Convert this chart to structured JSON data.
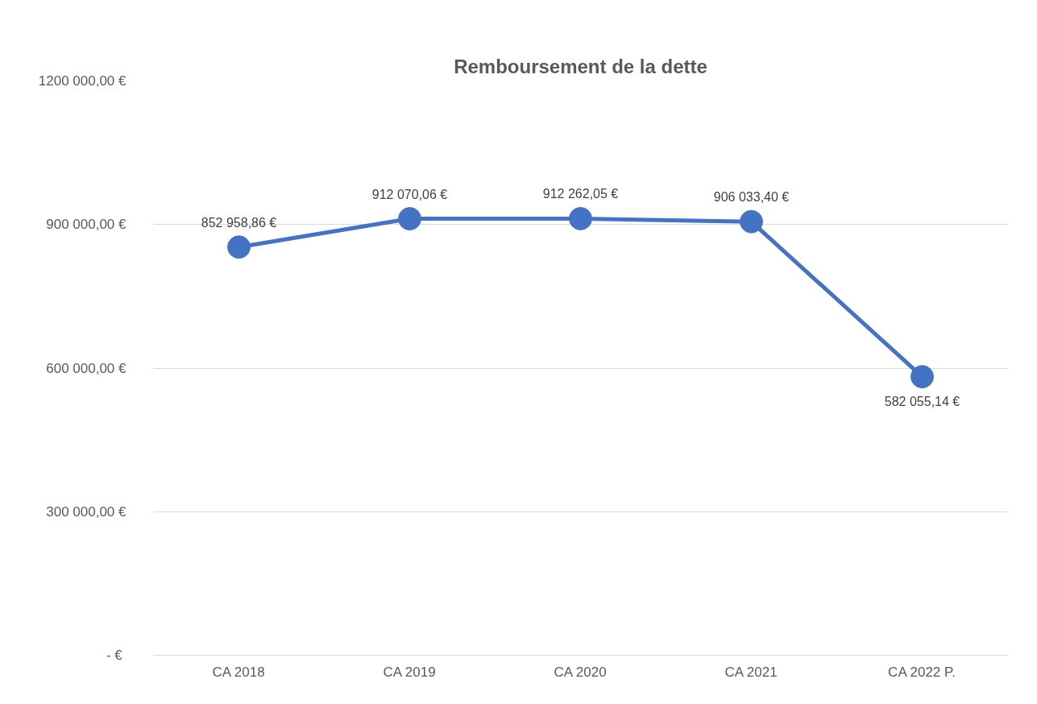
{
  "chart_data": {
    "type": "line",
    "title": "Remboursement de la dette",
    "categories": [
      "CA 2018",
      "CA 2019",
      "CA 2020",
      "CA 2021",
      "CA 2022 P."
    ],
    "series": [
      {
        "color": "#4472c4",
        "values": [
          852958.86,
          912070.06,
          912262.05,
          906033.4,
          582055.14
        ],
        "value_labels": [
          "852 958,86 €",
          "912 070,06 €",
          "912 262,05 €",
          "906 033,40 €",
          "582 055,14 €"
        ]
      }
    ],
    "ylim": [
      0,
      1200000
    ],
    "yticks": [
      {
        "value": 0,
        "label": "-  €"
      },
      {
        "value": 300000,
        "label": "300 000,00 €"
      },
      {
        "value": 600000,
        "label": "600 000,00 €"
      },
      {
        "value": 900000,
        "label": "900 000,00 €"
      },
      {
        "value": 1200000,
        "label": "1200 000,00 €"
      }
    ],
    "grid": "y",
    "marker": "circle",
    "line_style": "solid"
  }
}
